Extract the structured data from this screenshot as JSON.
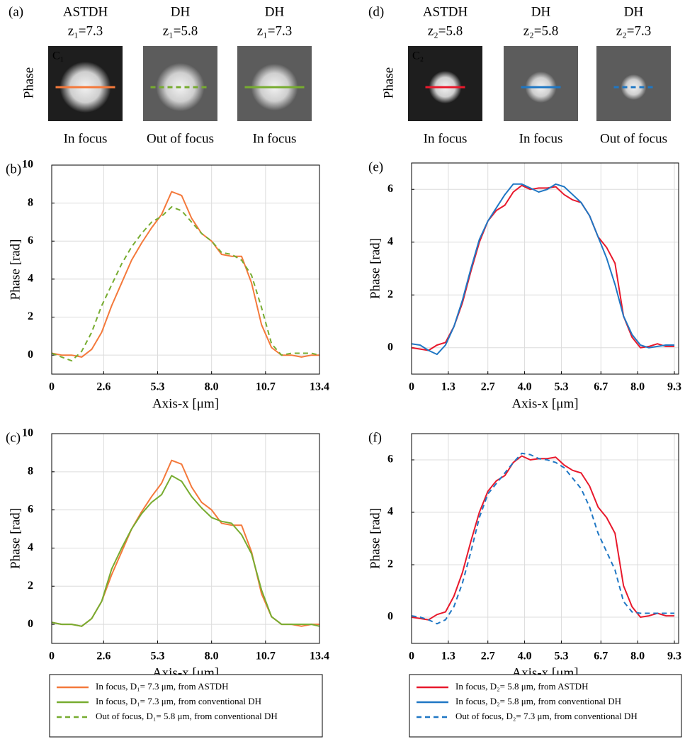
{
  "image_panels": [
    {
      "label": "(a)",
      "ylabel": "Phase",
      "images": [
        {
          "title": "ASTDH",
          "z": "z₁=7.3",
          "caption": "In focus",
          "marker": "C₁"
        },
        {
          "title": "DH",
          "z": "z₁=5.8",
          "caption": "Out of focus"
        },
        {
          "title": "DH",
          "z": "z₁=7.3",
          "caption": "In focus"
        }
      ]
    },
    {
      "label": "(d)",
      "ylabel": "Phase",
      "images": [
        {
          "title": "ASTDH",
          "z": "z₂=5.8",
          "caption": "In focus",
          "marker": "C₂"
        },
        {
          "title": "DH",
          "z": "z₂=5.8",
          "caption": "In focus"
        },
        {
          "title": "DH",
          "z": "z₂=7.3",
          "caption": "Out of focus"
        }
      ]
    }
  ],
  "chart_data": [
    {
      "type": "line",
      "panel_label": "(b)",
      "xlabel": "Axis-x [μm]",
      "ylabel": "Phase [rad]",
      "grid": true,
      "x": [
        0,
        0.5,
        1,
        1.5,
        2,
        2.5,
        3,
        3.5,
        4,
        4.5,
        5,
        5.5,
        6,
        6.5,
        7,
        7.5,
        8,
        8.5,
        9,
        9.5,
        10,
        10.5,
        11,
        11.5,
        12,
        12.5,
        13,
        13.4
      ],
      "xlim": [
        0,
        13.4
      ],
      "ylim": [
        -1,
        10
      ],
      "xticks": [
        0,
        2.6,
        5.3,
        {
          "value": 8,
          "label": "8.0"
        },
        10.7,
        13.4
      ],
      "yticks": [
        0,
        2,
        4,
        6,
        8,
        10
      ],
      "series": [
        {
          "name": "In focus, D₁= 7.3 μm, from ASTDH",
          "color": "#f4793b",
          "dash": false,
          "values": [
            0.1,
            0,
            0,
            -0.1,
            0.3,
            1.2,
            2.6,
            3.8,
            5.0,
            5.9,
            6.7,
            7.4,
            8.6,
            8.4,
            7.2,
            6.4,
            6.0,
            5.3,
            5.2,
            5.2,
            3.8,
            1.6,
            0.4,
            0,
            0,
            -0.1,
            0,
            0
          ]
        },
        {
          "name": "Out of focus, D₁= 5.8 μm, from conventional  DH",
          "color": "#77ac30",
          "dash": true,
          "values": [
            0.1,
            -0.1,
            -0.3,
            0.2,
            1.2,
            2.6,
            3.7,
            4.8,
            5.7,
            6.4,
            7.0,
            7.3,
            7.8,
            7.6,
            7.0,
            6.4,
            6.0,
            5.4,
            5.3,
            5.0,
            4.2,
            2.5,
            0.6,
            0,
            0.1,
            0.1,
            0.1,
            0
          ]
        }
      ]
    },
    {
      "type": "line",
      "panel_label": "(c)",
      "xlabel": "Axis-x [μm]",
      "ylabel": "Phase [rad]",
      "grid": true,
      "x": [
        0,
        0.5,
        1,
        1.5,
        2,
        2.5,
        3,
        3.5,
        4,
        4.5,
        5,
        5.5,
        6,
        6.5,
        7,
        7.5,
        8,
        8.5,
        9,
        9.5,
        10,
        10.5,
        11,
        11.5,
        12,
        12.5,
        13,
        13.4
      ],
      "xlim": [
        0,
        13.4
      ],
      "ylim": [
        -1,
        10
      ],
      "xticks": [
        0,
        2.6,
        5.3,
        {
          "value": 8,
          "label": "8.0"
        },
        10.7,
        13.4
      ],
      "yticks": [
        0,
        2,
        4,
        6,
        8,
        10
      ],
      "series": [
        {
          "name": "In focus, D₁= 7.3 μm, from ASTDH",
          "color": "#f4793b",
          "dash": false,
          "values": [
            0.1,
            0,
            0,
            -0.1,
            0.3,
            1.2,
            2.6,
            3.8,
            5.0,
            5.9,
            6.7,
            7.4,
            8.6,
            8.4,
            7.2,
            6.4,
            6.0,
            5.3,
            5.2,
            5.2,
            3.8,
            1.6,
            0.4,
            0,
            0,
            -0.1,
            0,
            0
          ]
        },
        {
          "name": "In focus, D₁= 7.3 μm, from conventional  DH",
          "color": "#77ac30",
          "dash": false,
          "values": [
            0.1,
            0,
            0,
            -0.1,
            0.3,
            1.2,
            2.9,
            4.0,
            5.0,
            5.8,
            6.4,
            6.8,
            7.8,
            7.5,
            6.7,
            6.1,
            5.6,
            5.4,
            5.3,
            4.7,
            3.7,
            1.8,
            0.4,
            0,
            0,
            0,
            0,
            -0.1
          ]
        }
      ]
    },
    {
      "type": "line",
      "panel_label": "(e)",
      "xlabel": "Axis-x [μm]",
      "ylabel": "Phase [rad]",
      "grid": true,
      "x": [
        0,
        0.3,
        0.6,
        0.9,
        1.2,
        1.5,
        1.8,
        2.1,
        2.4,
        2.7,
        3.0,
        3.3,
        3.6,
        3.9,
        4.2,
        4.5,
        4.8,
        5.1,
        5.4,
        5.7,
        6.0,
        6.3,
        6.6,
        6.9,
        7.2,
        7.5,
        7.8,
        8.1,
        8.4,
        8.7,
        9.0,
        9.3
      ],
      "xlim": [
        0,
        9.45
      ],
      "ylim": [
        -1,
        7
      ],
      "xticks": [
        0,
        1.3,
        2.7,
        {
          "value": 4,
          "label": "4.0"
        },
        5.3,
        6.7,
        {
          "value": 8,
          "label": "8.0"
        },
        9.3
      ],
      "yticks": [
        0,
        2,
        4,
        6
      ],
      "series": [
        {
          "name": "In focus, D₂= 5.8 μm, from ASTDH",
          "color": "#e8192c",
          "dash": false,
          "values": [
            0,
            -0.05,
            -0.1,
            0.1,
            0.2,
            0.8,
            1.7,
            2.9,
            4.0,
            4.8,
            5.2,
            5.4,
            5.9,
            6.15,
            6.0,
            6.05,
            6.05,
            6.1,
            5.8,
            5.6,
            5.5,
            5.0,
            4.2,
            3.8,
            3.2,
            1.2,
            0.4,
            0.0,
            0.05,
            0.15,
            0.05,
            0.05
          ]
        },
        {
          "name": "In focus, D₂= 5.8 μm, from conventional  DH",
          "color": "#1f77c4",
          "dash": false,
          "values": [
            0.15,
            0.1,
            -0.1,
            -0.25,
            0.1,
            0.8,
            1.8,
            3.0,
            4.1,
            4.8,
            5.3,
            5.8,
            6.2,
            6.2,
            6.05,
            5.9,
            6.0,
            6.2,
            6.1,
            5.8,
            5.5,
            5.0,
            4.2,
            3.4,
            2.4,
            1.2,
            0.5,
            0.1,
            0.0,
            0.05,
            0.1,
            0.1
          ]
        }
      ]
    },
    {
      "type": "line",
      "panel_label": "(f)",
      "xlabel": "Axis-x [μm]",
      "ylabel": "Phase [rad]",
      "grid": true,
      "x": [
        0,
        0.3,
        0.6,
        0.9,
        1.2,
        1.5,
        1.8,
        2.1,
        2.4,
        2.7,
        3.0,
        3.3,
        3.6,
        3.9,
        4.2,
        4.5,
        4.8,
        5.1,
        5.4,
        5.7,
        6.0,
        6.3,
        6.6,
        6.9,
        7.2,
        7.5,
        7.8,
        8.1,
        8.4,
        8.7,
        9.0,
        9.3
      ],
      "xlim": [
        0,
        9.45
      ],
      "ylim": [
        -1,
        7
      ],
      "xticks": [
        0,
        1.3,
        2.7,
        {
          "value": 4,
          "label": "4.0"
        },
        5.3,
        6.7,
        {
          "value": 8,
          "label": "8.0"
        },
        9.3
      ],
      "yticks": [
        0,
        2,
        4,
        6
      ],
      "series": [
        {
          "name": "In focus, D₂= 5.8 μm, from ASTDH",
          "color": "#e8192c",
          "dash": false,
          "values": [
            0,
            -0.05,
            -0.1,
            0.1,
            0.2,
            0.8,
            1.7,
            2.9,
            4.0,
            4.8,
            5.2,
            5.4,
            5.9,
            6.15,
            6.0,
            6.05,
            6.05,
            6.1,
            5.8,
            5.6,
            5.5,
            5.0,
            4.2,
            3.8,
            3.2,
            1.2,
            0.4,
            0.0,
            0.05,
            0.15,
            0.05,
            0.05
          ]
        },
        {
          "name": "Out of focus, D₂= 7.3 μm, from conventional  DH",
          "color": "#1f77c4",
          "dash": true,
          "values": [
            0.05,
            0,
            -0.1,
            -0.25,
            -0.1,
            0.4,
            1.3,
            2.5,
            3.8,
            4.7,
            5.1,
            5.5,
            5.9,
            6.25,
            6.2,
            6.05,
            6.0,
            5.9,
            5.7,
            5.3,
            4.9,
            4.2,
            3.2,
            2.5,
            1.8,
            0.6,
            0.2,
            0.15,
            0.15,
            0.15,
            0.15,
            0.15
          ]
        }
      ]
    }
  ]
}
